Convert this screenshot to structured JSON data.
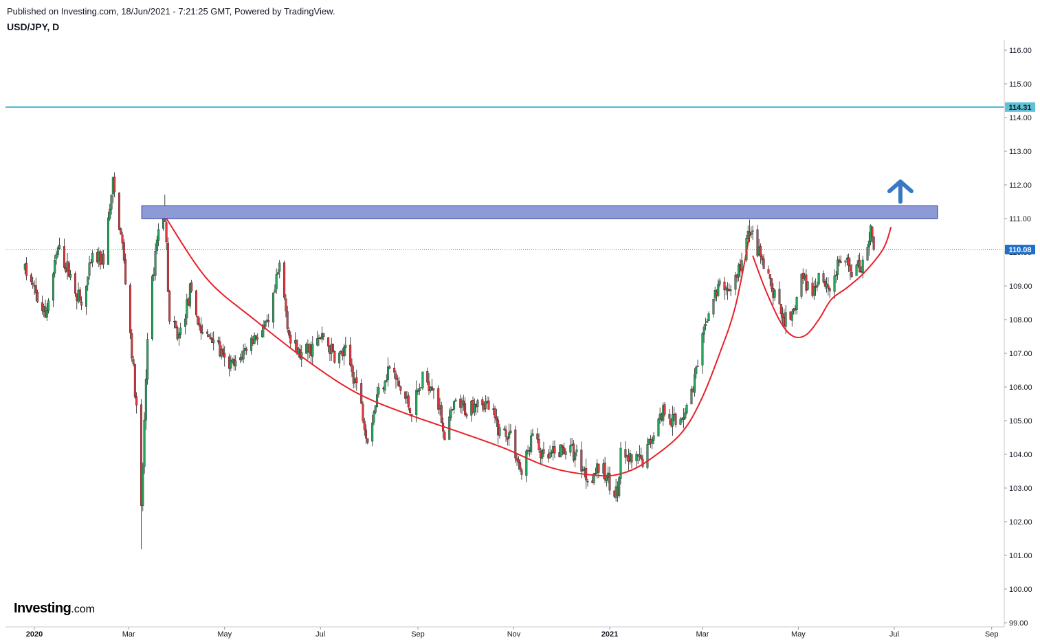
{
  "header": {
    "published": "Published on Investing.com, 18/Jun/2021 - 7:21:25 GMT, Powered by TradingView.",
    "symbol": "USD/JPY, D"
  },
  "logo": {
    "main": "Investing",
    "suffix": ".com"
  },
  "chart_data": {
    "type": "candlestick",
    "symbol": "USD/JPY",
    "interval": "D",
    "y_axis": {
      "min": 99.0,
      "max": 116.0,
      "ticks": [
        "116.00",
        "115.00",
        "114.00",
        "113.00",
        "112.00",
        "111.00",
        "110.00",
        "109.00",
        "108.00",
        "107.00",
        "106.00",
        "105.00",
        "104.00",
        "103.00",
        "102.00",
        "101.00",
        "100.00",
        "99.00"
      ]
    },
    "x_axis": {
      "ticks": [
        {
          "label": "2020",
          "bold": true
        },
        {
          "label": "Mar",
          "bold": false
        },
        {
          "label": "May",
          "bold": false
        },
        {
          "label": "Jul",
          "bold": false
        },
        {
          "label": "Sep",
          "bold": false
        },
        {
          "label": "Nov",
          "bold": false
        },
        {
          "label": "2021",
          "bold": true
        },
        {
          "label": "Mar",
          "bold": false
        },
        {
          "label": "May",
          "bold": false
        },
        {
          "label": "Jul",
          "bold": false
        },
        {
          "label": "Sep",
          "bold": false
        }
      ]
    },
    "horizontal_line": {
      "value": 114.31,
      "label": "114.31",
      "color": "#5fc1d4"
    },
    "last_price": {
      "value": 110.08,
      "label": "110.08",
      "color": "#1e6fc9"
    },
    "resistance_zone": {
      "low": 111.0,
      "high": 111.38,
      "color": "#8c9bd6",
      "border": "#2230a0"
    },
    "pattern": "cup and handle",
    "up_arrow_color": "#3a78c4",
    "curve_color": "#e8202a",
    "candle_up_color": "#26a65b",
    "candle_down_color": "#e0393e",
    "close_path": [
      [
        "2019-12-26",
        109.5
      ],
      [
        "2020-01-03",
        108.6
      ],
      [
        "2020-01-08",
        108.1
      ],
      [
        "2020-01-16",
        110.1
      ],
      [
        "2020-01-24",
        109.3
      ],
      [
        "2020-01-31",
        108.4
      ],
      [
        "2020-02-07",
        109.8
      ],
      [
        "2020-02-14",
        109.8
      ],
      [
        "2020-02-20",
        112.0
      ],
      [
        "2020-02-26",
        110.2
      ],
      [
        "2020-03-02",
        107.6
      ],
      [
        "2020-03-06",
        105.3
      ],
      [
        "2020-03-09",
        102.3
      ],
      [
        "2020-03-13",
        107.6
      ],
      [
        "2020-03-19",
        110.5
      ],
      [
        "2020-03-24",
        111.2
      ],
      [
        "2020-03-27",
        107.9
      ],
      [
        "2020-04-02",
        107.5
      ],
      [
        "2020-04-09",
        108.8
      ],
      [
        "2020-04-17",
        107.5
      ],
      [
        "2020-04-24",
        107.5
      ],
      [
        "2020-05-01",
        106.7
      ],
      [
        "2020-05-08",
        106.6
      ],
      [
        "2020-05-15",
        107.2
      ],
      [
        "2020-05-22",
        107.6
      ],
      [
        "2020-05-29",
        107.8
      ],
      [
        "2020-06-05",
        109.6
      ],
      [
        "2020-06-12",
        107.3
      ],
      [
        "2020-06-19",
        106.9
      ],
      [
        "2020-06-26",
        107.2
      ],
      [
        "2020-07-03",
        107.5
      ],
      [
        "2020-07-10",
        106.9
      ],
      [
        "2020-07-17",
        107.0
      ],
      [
        "2020-07-24",
        106.1
      ],
      [
        "2020-07-31",
        104.5
      ],
      [
        "2020-08-07",
        105.9
      ],
      [
        "2020-08-14",
        106.6
      ],
      [
        "2020-08-21",
        105.9
      ],
      [
        "2020-08-28",
        105.3
      ],
      [
        "2020-09-04",
        106.2
      ],
      [
        "2020-09-11",
        106.1
      ],
      [
        "2020-09-18",
        104.6
      ],
      [
        "2020-09-25",
        105.5
      ],
      [
        "2020-10-02",
        105.3
      ],
      [
        "2020-10-09",
        105.7
      ],
      [
        "2020-10-16",
        105.4
      ],
      [
        "2020-10-23",
        104.7
      ],
      [
        "2020-10-30",
        104.6
      ],
      [
        "2020-11-06",
        103.4
      ],
      [
        "2020-11-13",
        104.6
      ],
      [
        "2020-11-20",
        103.8
      ],
      [
        "2020-11-27",
        104.0
      ],
      [
        "2020-12-04",
        104.2
      ],
      [
        "2020-12-11",
        104.0
      ],
      [
        "2020-12-18",
        103.3
      ],
      [
        "2020-12-25",
        103.6
      ],
      [
        "2021-01-01",
        103.2
      ],
      [
        "2021-01-06",
        102.8
      ],
      [
        "2021-01-08",
        103.9
      ],
      [
        "2021-01-15",
        103.8
      ],
      [
        "2021-01-22",
        103.8
      ],
      [
        "2021-01-29",
        104.7
      ],
      [
        "2021-02-05",
        105.4
      ],
      [
        "2021-02-12",
        104.9
      ],
      [
        "2021-02-19",
        105.4
      ],
      [
        "2021-02-26",
        106.6
      ],
      [
        "2021-03-05",
        108.3
      ],
      [
        "2021-03-12",
        109.0
      ],
      [
        "2021-03-19",
        108.9
      ],
      [
        "2021-03-26",
        109.7
      ],
      [
        "2021-03-31",
        110.7
      ],
      [
        "2021-04-07",
        109.8
      ],
      [
        "2021-04-14",
        108.9
      ],
      [
        "2021-04-21",
        108.1
      ],
      [
        "2021-04-26",
        107.8
      ],
      [
        "2021-05-03",
        109.3
      ],
      [
        "2021-05-10",
        108.8
      ],
      [
        "2021-05-14",
        109.4
      ],
      [
        "2021-05-21",
        108.9
      ],
      [
        "2021-05-28",
        109.8
      ],
      [
        "2021-06-04",
        109.5
      ],
      [
        "2021-06-10",
        109.6
      ],
      [
        "2021-06-16",
        110.6
      ],
      [
        "2021-06-18",
        110.1
      ]
    ],
    "notable_points": [
      {
        "date": "2020-02-20",
        "high": 112.2
      },
      {
        "date": "2020-03-09",
        "low": 101.18
      },
      {
        "date": "2020-03-24",
        "high": 111.71
      },
      {
        "date": "2021-01-06",
        "low": 102.59
      },
      {
        "date": "2021-03-31",
        "high": 110.97
      },
      {
        "date": "2021-06-16",
        "high": 110.83
      }
    ]
  }
}
